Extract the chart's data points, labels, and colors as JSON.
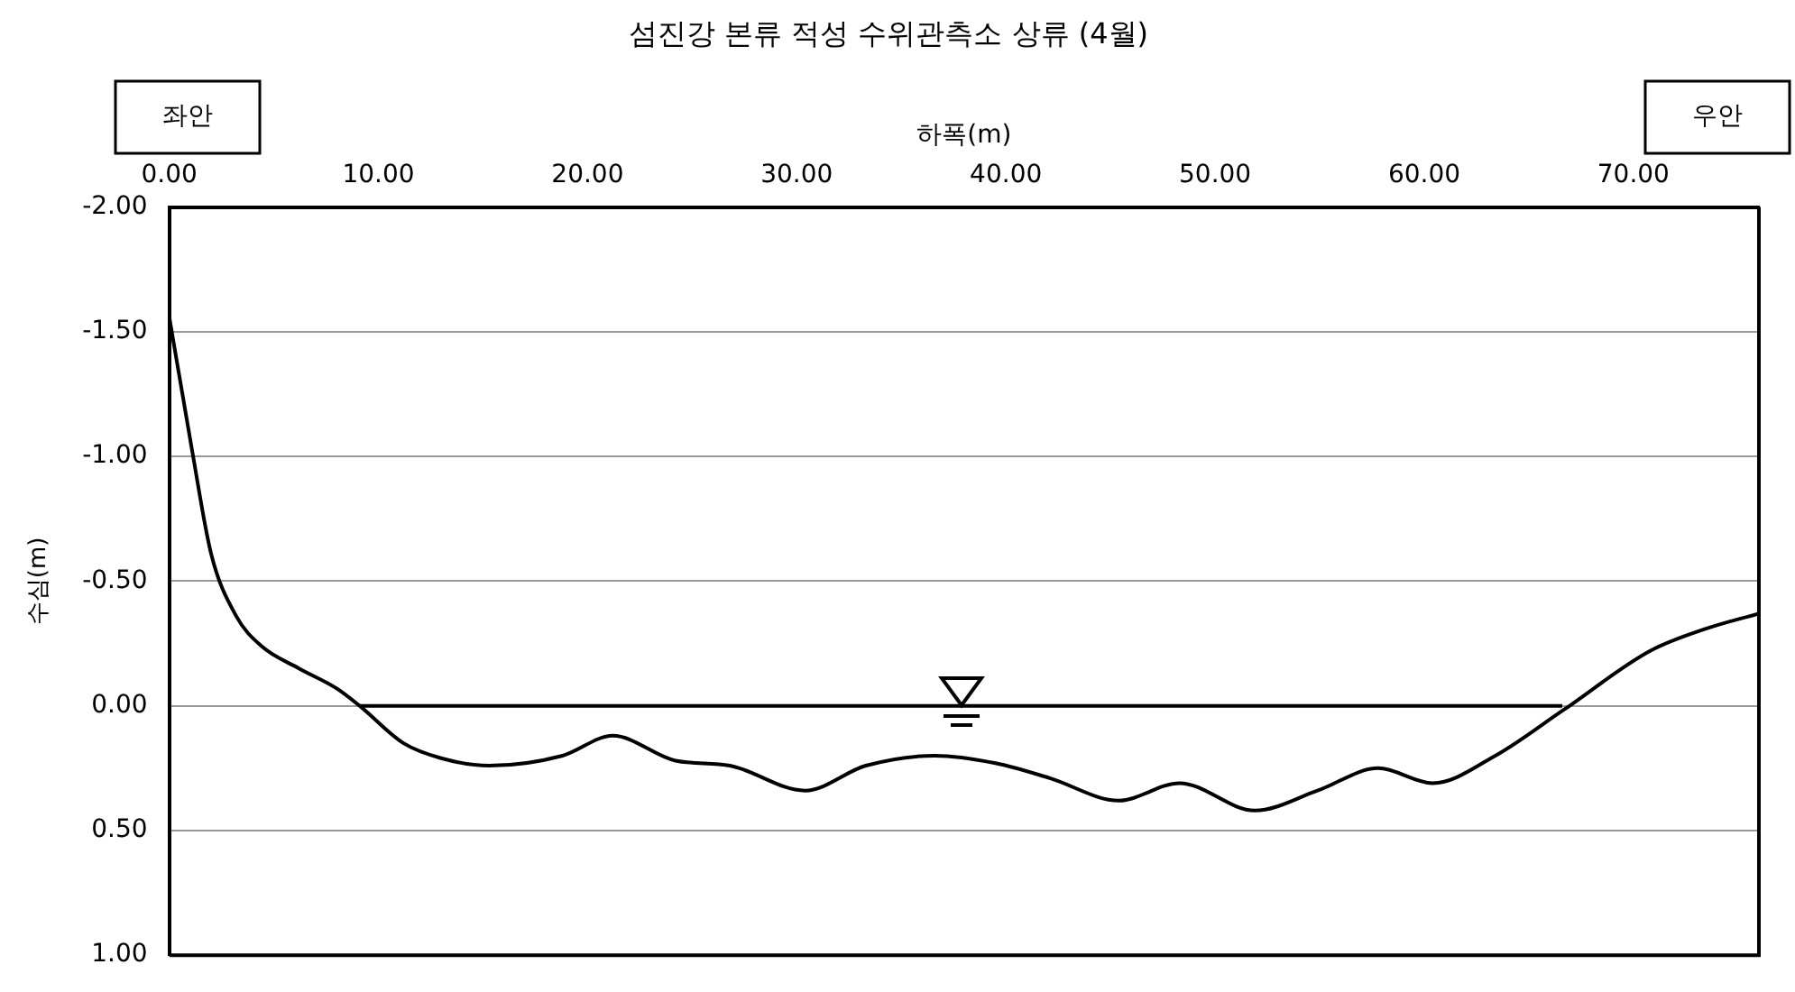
{
  "chart_data": {
    "type": "line",
    "title": "섬진강 본류 적성 수위관측소 상류 (4월)",
    "xlabel": "하폭(m)",
    "ylabel": "수심(m)",
    "annotations": [
      "좌안",
      "우안"
    ],
    "series": [
      {
        "color": "#000000",
        "x": [
          0,
          1.1,
          2.0,
          3.2,
          4.4,
          6.2,
          8.0,
          9.1,
          11.2,
          13.0,
          15.3,
          18.8,
          21.2,
          24.2,
          26.8,
          30.4,
          33.3,
          36.6,
          39.5,
          42.1,
          45.4,
          48.3,
          51.9,
          54.9,
          57.8,
          60.4,
          63.4,
          66.6,
          70.8,
          73.5,
          76.0
        ],
        "values": [
          -1.56,
          -1.02,
          -0.61,
          -0.36,
          -0.24,
          -0.15,
          -0.07,
          0.0,
          0.15,
          0.21,
          0.24,
          0.2,
          0.12,
          0.22,
          0.24,
          0.34,
          0.24,
          0.2,
          0.23,
          0.29,
          0.38,
          0.31,
          0.42,
          0.34,
          0.25,
          0.31,
          0.2,
          0.02,
          -0.22,
          -0.31,
          -0.37
        ]
      },
      {
        "color": "#000000",
        "x": [
          9.1,
          66.6
        ],
        "values": [
          0,
          0
        ]
      }
    ],
    "xlim": [
      0,
      76
    ],
    "xticks": [
      {
        "value": 0,
        "label": "0.00"
      },
      {
        "value": 10,
        "label": "10.00"
      },
      {
        "value": 20,
        "label": "20.00"
      },
      {
        "value": 30,
        "label": "30.00"
      },
      {
        "value": 40,
        "label": "40.00"
      },
      {
        "value": 50,
        "label": "50.00"
      },
      {
        "value": 60,
        "label": "60.00"
      },
      {
        "value": 70,
        "label": "70.00"
      }
    ],
    "ylim": [
      1,
      -2
    ],
    "yticks": [
      {
        "value": -2,
        "label": "-2.00"
      },
      {
        "value": -1.5,
        "label": "-1.50"
      },
      {
        "value": -1,
        "label": "-1.00"
      },
      {
        "value": -0.5,
        "label": "-0.50"
      },
      {
        "value": 0,
        "label": "0.00"
      },
      {
        "value": 0.5,
        "label": "0.50"
      },
      {
        "value": 1,
        "label": "1.00"
      }
    ],
    "grid": "y",
    "marker": "none",
    "line_style": "solid"
  }
}
